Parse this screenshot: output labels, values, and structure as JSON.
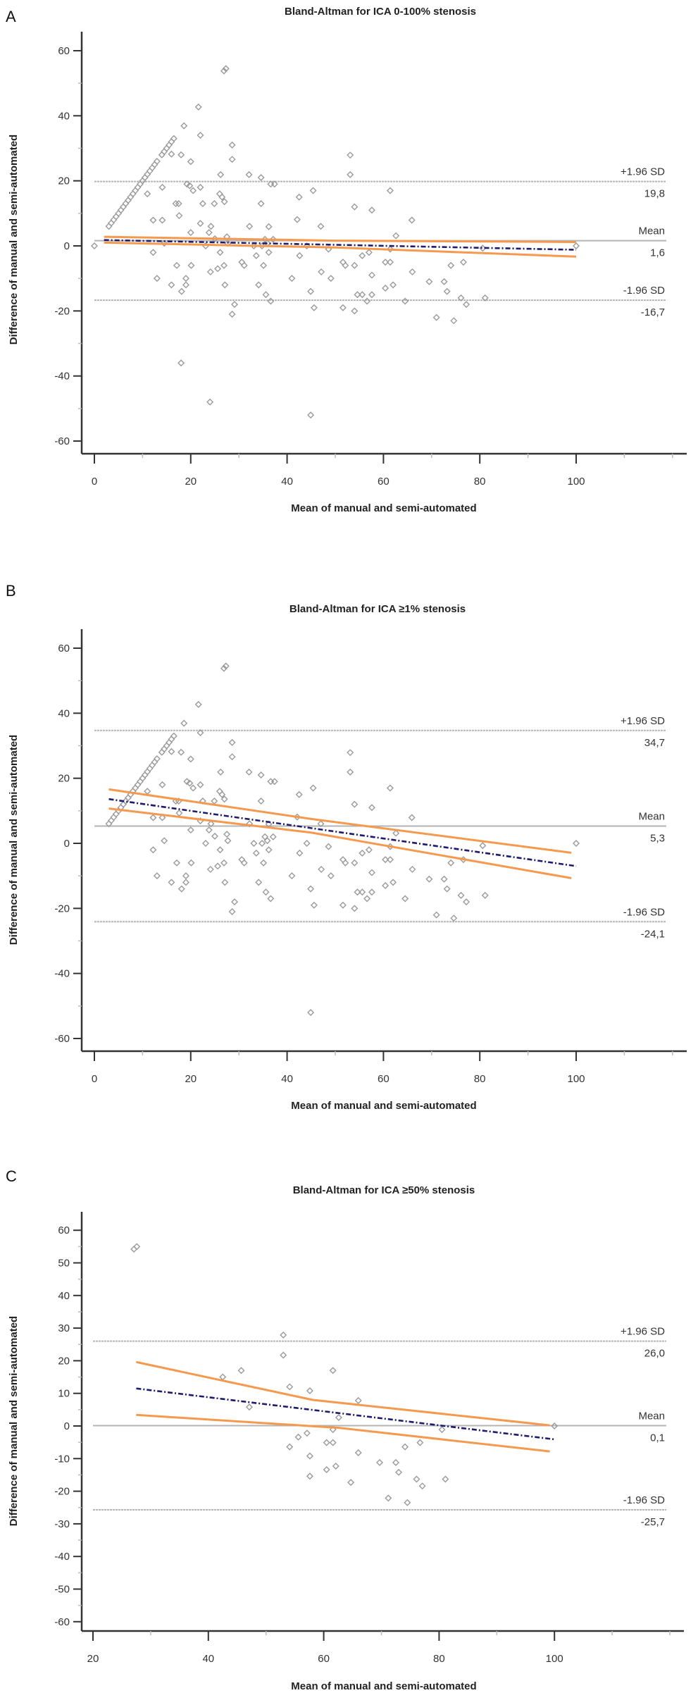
{
  "colors": {
    "points": "#9a9a9a",
    "reference_lines": "#b4b4b4",
    "regression": "#1c1c6e",
    "confidence": "#f5994e",
    "axis": "#333333"
  },
  "shared_points": [
    [
      3,
      6
    ],
    [
      3.5,
      7
    ],
    [
      4,
      8
    ],
    [
      4.5,
      9
    ],
    [
      5,
      10
    ],
    [
      5.5,
      11
    ],
    [
      6,
      12
    ],
    [
      6.5,
      13
    ],
    [
      7,
      14
    ],
    [
      7.5,
      15
    ],
    [
      8,
      16
    ],
    [
      8.5,
      17
    ],
    [
      9,
      18
    ],
    [
      9.5,
      19
    ],
    [
      10,
      20
    ],
    [
      10.5,
      21
    ],
    [
      11,
      22
    ],
    [
      11.5,
      23
    ],
    [
      12,
      24
    ],
    [
      12.5,
      25
    ],
    [
      13,
      26
    ],
    [
      14,
      28
    ],
    [
      14.5,
      29
    ],
    [
      15,
      30
    ],
    [
      15.5,
      31
    ],
    [
      16,
      32
    ],
    [
      16.5,
      33
    ],
    [
      27.3,
      54.5
    ],
    [
      26.9,
      53.8
    ],
    [
      21.6,
      42.7
    ],
    [
      18.6,
      36.9
    ],
    [
      22,
      34
    ],
    [
      28.6,
      31
    ],
    [
      28.6,
      26.6
    ],
    [
      16,
      28.2
    ],
    [
      18,
      28
    ],
    [
      20,
      25.9
    ],
    [
      53.1,
      27.9
    ],
    [
      53.1,
      21.9
    ],
    [
      32.1,
      21.9
    ],
    [
      34.6,
      21
    ],
    [
      26.2,
      21.9
    ],
    [
      36.6,
      19
    ],
    [
      37.4,
      19
    ],
    [
      19.2,
      19
    ],
    [
      19.8,
      18.5
    ],
    [
      22,
      18
    ],
    [
      14.1,
      18
    ],
    [
      20.5,
      17
    ],
    [
      45.4,
      17
    ],
    [
      61.4,
      17
    ],
    [
      11,
      16
    ],
    [
      26,
      16
    ],
    [
      26.5,
      15
    ],
    [
      27,
      13.6
    ],
    [
      42.5,
      15
    ],
    [
      34.6,
      13
    ],
    [
      24.9,
      13
    ],
    [
      22.5,
      13
    ],
    [
      16.9,
      13
    ],
    [
      17.5,
      13
    ],
    [
      54,
      12
    ],
    [
      57.6,
      11
    ],
    [
      17.6,
      9.3
    ],
    [
      12.2,
      7.9
    ],
    [
      14.1,
      7.9
    ],
    [
      65.9,
      7.9
    ],
    [
      42.1,
      8.1
    ],
    [
      22,
      6.9
    ],
    [
      24.2,
      6
    ],
    [
      32.2,
      6
    ],
    [
      36.2,
      5.9
    ],
    [
      47,
      6
    ],
    [
      20,
      4.1
    ],
    [
      23.8,
      4.1
    ],
    [
      25,
      2.2
    ],
    [
      27.5,
      2.8
    ],
    [
      27.7,
      0.8
    ],
    [
      14.5,
      0.8
    ],
    [
      23.1,
      0
    ],
    [
      33.1,
      0
    ],
    [
      34.8,
      0
    ],
    [
      35.4,
      2
    ],
    [
      35.9,
      0.8
    ],
    [
      37.1,
      2
    ],
    [
      44.1,
      0
    ],
    [
      62.6,
      3.1
    ],
    [
      12.2,
      -2
    ],
    [
      26.1,
      -2
    ],
    [
      36.2,
      -2
    ],
    [
      33.6,
      -3
    ],
    [
      42.6,
      -3
    ],
    [
      48.6,
      -1
    ],
    [
      61.4,
      -1
    ],
    [
      80.6,
      -0.7
    ],
    [
      100,
      0
    ],
    [
      17.1,
      -6
    ],
    [
      20.1,
      -6
    ],
    [
      26.9,
      -6
    ],
    [
      35.1,
      -6
    ],
    [
      30.6,
      -5
    ],
    [
      31.1,
      -6
    ],
    [
      51.6,
      -5
    ],
    [
      52.1,
      -6
    ],
    [
      54,
      -6
    ],
    [
      55.6,
      -3
    ],
    [
      57,
      -2
    ],
    [
      60.4,
      -5
    ],
    [
      61.4,
      -5
    ],
    [
      74,
      -6
    ],
    [
      76.6,
      -5
    ],
    [
      25.6,
      -7
    ],
    [
      24.1,
      -8
    ],
    [
      47.1,
      -8
    ],
    [
      66,
      -8
    ],
    [
      57.6,
      -9
    ],
    [
      13,
      -10
    ],
    [
      19,
      -10
    ],
    [
      41,
      -10
    ],
    [
      49.1,
      -10
    ],
    [
      69.5,
      -11
    ],
    [
      72.6,
      -11
    ],
    [
      16,
      -12
    ],
    [
      19,
      -12
    ],
    [
      27.1,
      -12
    ],
    [
      34.1,
      -12
    ],
    [
      62,
      -12
    ],
    [
      60.4,
      -13
    ],
    [
      18.1,
      -14
    ],
    [
      73.2,
      -14
    ],
    [
      44.9,
      -14
    ],
    [
      35.6,
      -15
    ],
    [
      36.6,
      -17
    ],
    [
      54.6,
      -15
    ],
    [
      55.6,
      -15
    ],
    [
      57.6,
      -15
    ],
    [
      56.6,
      -17
    ],
    [
      64.5,
      -17
    ],
    [
      76.1,
      -16
    ],
    [
      81.1,
      -16
    ],
    [
      77.2,
      -18
    ],
    [
      29.1,
      -18
    ],
    [
      28.6,
      -21
    ],
    [
      45.6,
      -19
    ],
    [
      51.6,
      -19
    ],
    [
      54,
      -20
    ],
    [
      71,
      -22
    ],
    [
      74.6,
      -23
    ],
    [
      44.9,
      -52
    ]
  ],
  "chart_data": [
    {
      "type": "scatter",
      "panel_letter": "A",
      "title": "Bland-Altman for ICA 0-100% stenosis",
      "xlabel": "Mean of manual and semi-automated",
      "ylabel": "Difference of manual and semi-automated",
      "xlim": [
        0,
        120
      ],
      "ylim": [
        -60,
        60
      ],
      "x_ticks": [
        0,
        20,
        40,
        60,
        80,
        100
      ],
      "x_minor_step": 10,
      "y_ticks": [
        60,
        40,
        20,
        0,
        -20,
        -40,
        -60
      ],
      "y_minor_step": 10,
      "uses_shared_points": true,
      "extra_points": [
        [
          0,
          0
        ],
        [
          18,
          -36
        ],
        [
          24,
          -48
        ]
      ],
      "upper_loa": {
        "label": "+1.96 SD",
        "value": 19.8,
        "value_text": "19,8"
      },
      "mean": {
        "label": "Mean",
        "value": 1.6,
        "value_text": "1,6"
      },
      "lower_loa": {
        "label": "-1.96 SD",
        "value": -16.7,
        "value_text": "-16,7"
      },
      "regression_line": [
        [
          2,
          1.8
        ],
        [
          100,
          -1.2
        ]
      ],
      "ci_upper": [
        [
          2,
          2.8
        ],
        [
          50,
          1.6
        ],
        [
          100,
          1.2
        ]
      ],
      "ci_lower": [
        [
          2,
          1.0
        ],
        [
          50,
          -0.5
        ],
        [
          100,
          -3.3
        ]
      ]
    },
    {
      "type": "scatter",
      "panel_letter": "B",
      "title": "Bland-Altman for ICA ≥1% stenosis",
      "xlabel": "Mean of manual and semi-automated",
      "ylabel": "Difference of manual and semi-automated",
      "xlim": [
        0,
        120
      ],
      "ylim": [
        -60,
        60
      ],
      "x_ticks": [
        0,
        20,
        40,
        60,
        80,
        100
      ],
      "x_minor_step": 10,
      "y_ticks": [
        60,
        40,
        20,
        0,
        -20,
        -40,
        -60
      ],
      "y_minor_step": 10,
      "uses_shared_points": true,
      "extra_points": [],
      "upper_loa": {
        "label": "+1.96 SD",
        "value": 34.7,
        "value_text": "34,7"
      },
      "mean": {
        "label": "Mean",
        "value": 5.3,
        "value_text": "5,3"
      },
      "lower_loa": {
        "label": "-1.96 SD",
        "value": -24.1,
        "value_text": "-24,1"
      },
      "regression_line": [
        [
          3,
          13.6
        ],
        [
          100,
          -7
        ]
      ],
      "ci_upper": [
        [
          3,
          16.6
        ],
        [
          45,
          7.5
        ],
        [
          99,
          -2.9
        ]
      ],
      "ci_lower": [
        [
          3,
          10.7
        ],
        [
          45,
          3.3
        ],
        [
          99,
          -10.7
        ]
      ]
    },
    {
      "type": "scatter",
      "panel_letter": "C",
      "title": "Bland-Altman for ICA ≥50% stenosis",
      "xlabel": "Mean of manual and semi-automated",
      "ylabel": "Difference of manual and semi-automated",
      "xlim": [
        20,
        120
      ],
      "ylim": [
        -60,
        60
      ],
      "x_ticks": [
        20,
        40,
        60,
        80,
        100
      ],
      "x_minor_step": 10,
      "y_ticks": [
        60,
        50,
        40,
        30,
        20,
        10,
        0,
        -10,
        -20,
        -30,
        -40,
        -50,
        -60
      ],
      "y_minor_step": 5,
      "uses_shared_points": false,
      "extra_points": [
        [
          27.1,
          54.2
        ],
        [
          27.6,
          55
        ],
        [
          42.5,
          15
        ],
        [
          45.7,
          17
        ],
        [
          53,
          27.9
        ],
        [
          53,
          21.7
        ],
        [
          54.1,
          12
        ],
        [
          57.6,
          10.8
        ],
        [
          61.6,
          17
        ],
        [
          66,
          7.8
        ],
        [
          47.1,
          5.8
        ],
        [
          62.6,
          2.6
        ],
        [
          61.6,
          -1.1
        ],
        [
          57.1,
          -2.2
        ],
        [
          55.6,
          -3.4
        ],
        [
          54.1,
          -6.4
        ],
        [
          60.5,
          -5.1
        ],
        [
          61.6,
          -5.1
        ],
        [
          57.6,
          -9.2
        ],
        [
          60.5,
          -13.4
        ],
        [
          62.1,
          -12.3
        ],
        [
          57.6,
          -15.4
        ],
        [
          64.7,
          -17.3
        ],
        [
          66,
          -8.2
        ],
        [
          69.7,
          -11.2
        ],
        [
          72.5,
          -11.2
        ],
        [
          73,
          -14.2
        ],
        [
          74.1,
          -6.4
        ],
        [
          76.7,
          -5.1
        ],
        [
          76.1,
          -16.3
        ],
        [
          77.1,
          -18.4
        ],
        [
          81.1,
          -16.3
        ],
        [
          71.2,
          -22.1
        ],
        [
          74.5,
          -23.5
        ],
        [
          80.5,
          -1.1
        ],
        [
          100,
          0
        ]
      ],
      "upper_loa": {
        "label": "+1.96 SD",
        "value": 26.0,
        "value_text": "26,0"
      },
      "mean": {
        "label": "Mean",
        "value": 0.1,
        "value_text": "0,1"
      },
      "lower_loa": {
        "label": "-1.96 SD",
        "value": -25.7,
        "value_text": "-25,7"
      },
      "regression_line": [
        [
          27.5,
          11.5
        ],
        [
          100,
          -4.1
        ]
      ],
      "ci_upper": [
        [
          27.5,
          19.6
        ],
        [
          58.1,
          8.0
        ],
        [
          99.2,
          0.2
        ]
      ],
      "ci_lower": [
        [
          27.5,
          3.4
        ],
        [
          62.8,
          -0.6
        ],
        [
          99.2,
          -7.8
        ]
      ]
    }
  ]
}
